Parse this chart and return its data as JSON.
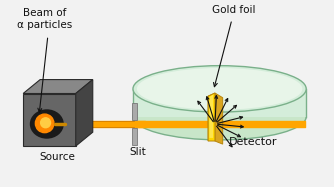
{
  "bg_color": "#f2f2f2",
  "source_front_color": "#666666",
  "source_top_color": "#888888",
  "source_right_color": "#444444",
  "source_dark": "#1a1a1a",
  "glow_color": "#ff8800",
  "glow_inner": "#ffcc44",
  "beam_color_top": "#FFA500",
  "beam_color_bot": "#cc7700",
  "det_fill": "#d4edda",
  "det_edge": "#7ab08a",
  "det_fill2": "#c8e6c9",
  "foil_color": "#DAA520",
  "foil_light": "#FFD700",
  "foil_shadow": "#8B6914",
  "slit_color": "#aaaaaa",
  "slit_edge": "#777777",
  "arrow_color": "#111111",
  "label_color": "#111111",
  "source_label": "Source",
  "beam_label": "Beam of\nα particles",
  "foil_label": "Gold foil",
  "slit_label": "Slit",
  "detector_label": "Detector",
  "label_fontsize": 7.5
}
